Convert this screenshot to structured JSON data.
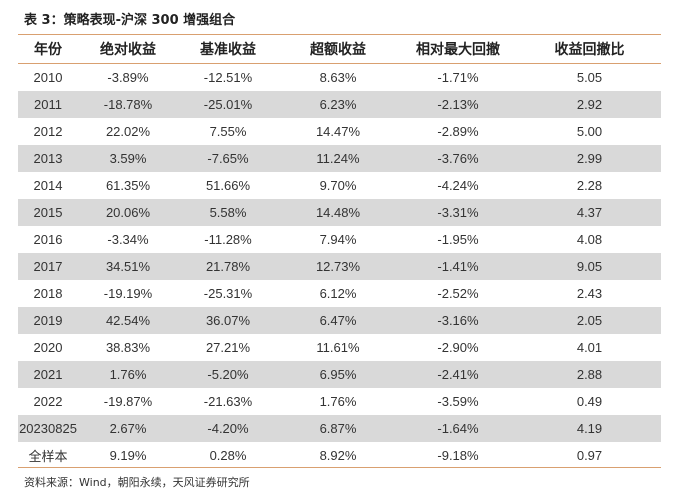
{
  "title": "表 3：策略表现-沪深 300 增强组合",
  "source": "资料来源：Wind，朝阳永续，天风证券研究所",
  "colors": {
    "rule": "#d9a070",
    "shaded_row": "#d9d9d9"
  },
  "table": {
    "headers": [
      "年份",
      "绝对收益",
      "基准收益",
      "超额收益",
      "相对最大回撤",
      "收益回撤比"
    ],
    "rows": [
      [
        "2010",
        "-3.89%",
        "-12.51%",
        "8.63%",
        "-1.71%",
        "5.05"
      ],
      [
        "2011",
        "-18.78%",
        "-25.01%",
        "6.23%",
        "-2.13%",
        "2.92"
      ],
      [
        "2012",
        "22.02%",
        "7.55%",
        "14.47%",
        "-2.89%",
        "5.00"
      ],
      [
        "2013",
        "3.59%",
        "-7.65%",
        "11.24%",
        "-3.76%",
        "2.99"
      ],
      [
        "2014",
        "61.35%",
        "51.66%",
        "9.70%",
        "-4.24%",
        "2.28"
      ],
      [
        "2015",
        "20.06%",
        "5.58%",
        "14.48%",
        "-3.31%",
        "4.37"
      ],
      [
        "2016",
        "-3.34%",
        "-11.28%",
        "7.94%",
        "-1.95%",
        "4.08"
      ],
      [
        "2017",
        "34.51%",
        "21.78%",
        "12.73%",
        "-1.41%",
        "9.05"
      ],
      [
        "2018",
        "-19.19%",
        "-25.31%",
        "6.12%",
        "-2.52%",
        "2.43"
      ],
      [
        "2019",
        "42.54%",
        "36.07%",
        "6.47%",
        "-3.16%",
        "2.05"
      ],
      [
        "2020",
        "38.83%",
        "27.21%",
        "11.61%",
        "-2.90%",
        "4.01"
      ],
      [
        "2021",
        "1.76%",
        "-5.20%",
        "6.95%",
        "-2.41%",
        "2.88"
      ],
      [
        "2022",
        "-19.87%",
        "-21.63%",
        "1.76%",
        "-3.59%",
        "0.49"
      ],
      [
        "20230825",
        "2.67%",
        "-4.20%",
        "6.87%",
        "-1.64%",
        "4.19"
      ],
      [
        "全样本",
        "9.19%",
        "0.28%",
        "8.92%",
        "-9.18%",
        "0.97"
      ]
    ]
  }
}
